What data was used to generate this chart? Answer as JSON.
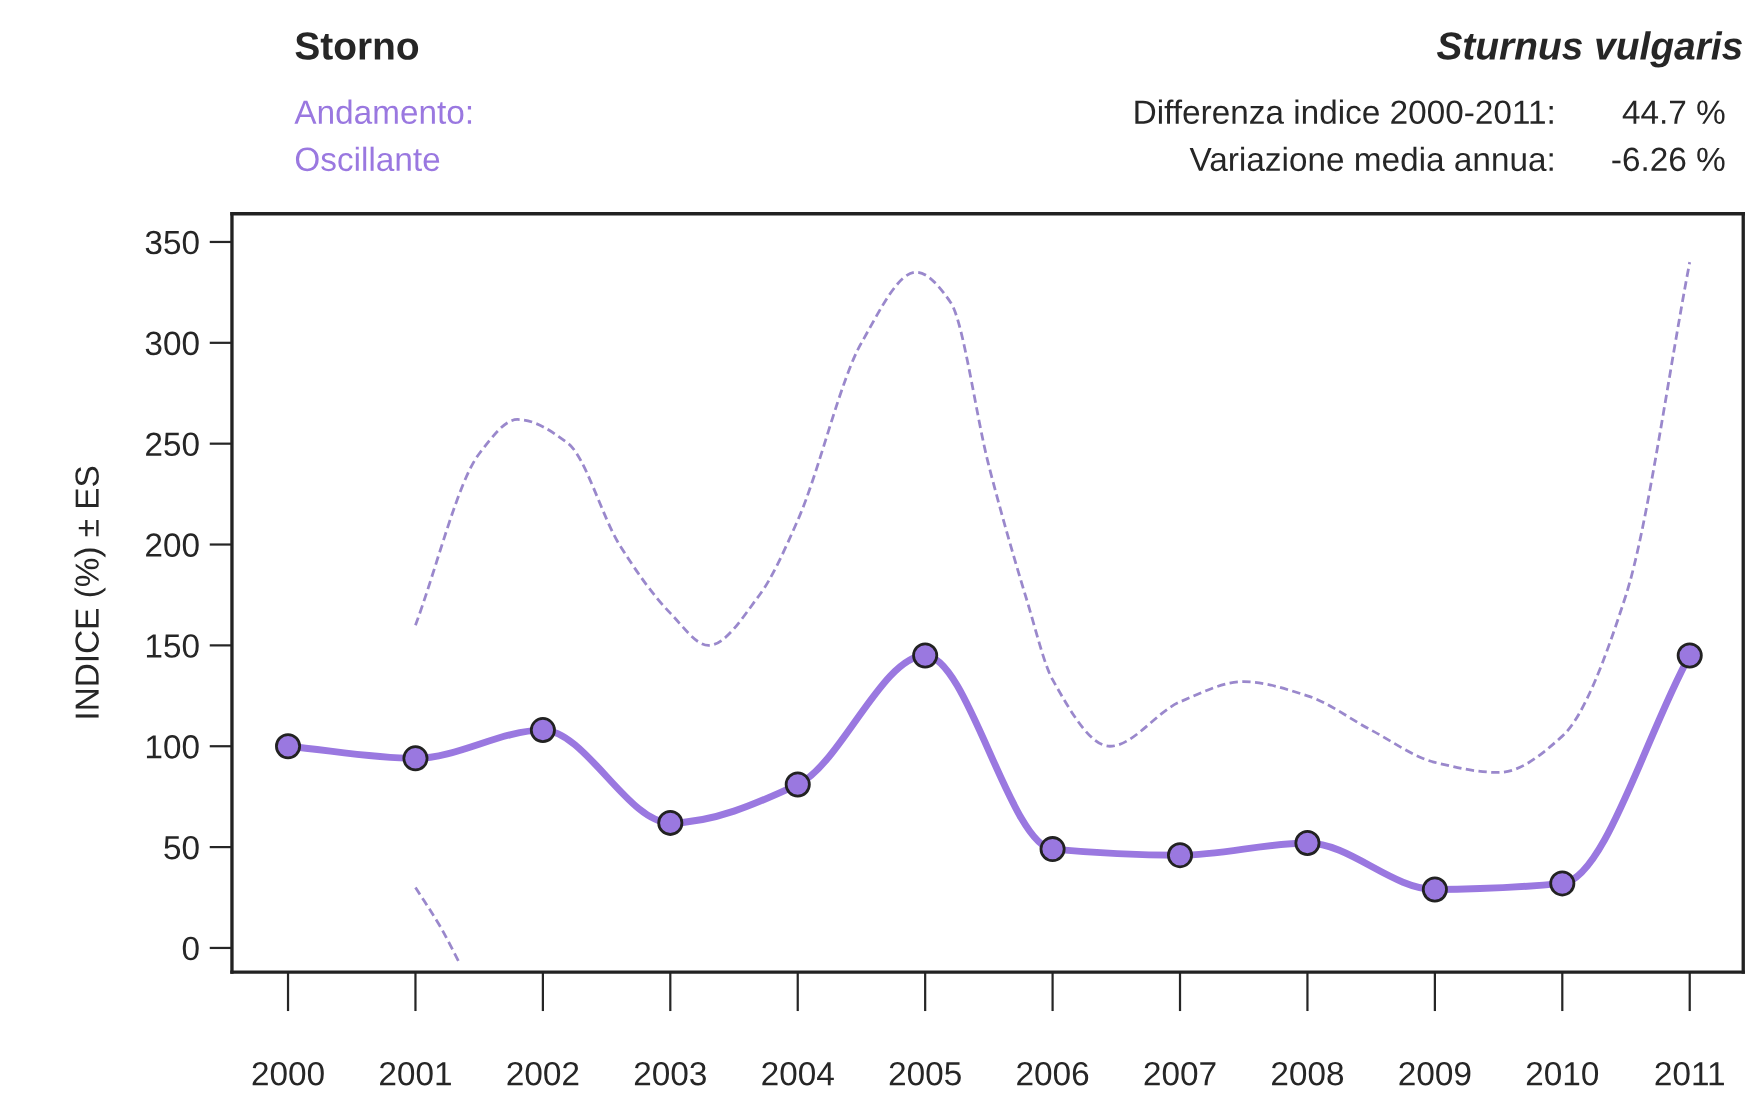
{
  "chart_data": {
    "type": "line",
    "title": "Storno",
    "subtitle": "Sturnus vulgaris",
    "ylabel": "INDICE (%) ± ES",
    "annotations": [
      "Andamento:",
      "Oscillante",
      "Differenza indice 2000-2011:",
      "44.7 %",
      "Variazione media annua:",
      "-6.26 %"
    ],
    "series": [
      {
        "color": "#9a78e0",
        "marker": "circle",
        "line_style": "solid",
        "x": [
          2000,
          2001,
          2002,
          2003,
          2004,
          2005,
          2006,
          2007,
          2008,
          2009,
          2010,
          2011
        ],
        "values": [
          100,
          94,
          108,
          62,
          81,
          145,
          49,
          46,
          52,
          29,
          32,
          145
        ]
      },
      {
        "color": "#9a88cc",
        "marker": "none",
        "line_style": "dashed",
        "x": [
          2001,
          2001.5,
          2001.8,
          2002.2,
          2002.6,
          2003,
          2003.3,
          2003.7,
          2004,
          2004.5,
          2004.93,
          2005.2,
          2005.5,
          2005.8,
          2006,
          2006.45,
          2007,
          2007.5,
          2008,
          2008.5,
          2009,
          2009.5,
          2010,
          2010.5,
          2011
        ],
        "values": [
          160,
          245,
          262,
          250,
          200,
          166,
          150,
          175,
          212,
          300,
          335,
          320,
          239,
          172,
          133,
          100,
          122,
          132,
          125,
          108,
          92,
          87,
          105,
          175,
          340
        ]
      },
      {
        "color": "#9a88cc",
        "marker": "none",
        "line_style": "dashed",
        "x": [
          2001,
          2001.2,
          2001.35
        ],
        "values": [
          30,
          10,
          -8
        ]
      }
    ],
    "xlim": [
      1999.56,
      2011.42
    ],
    "xticks": [
      2000,
      2001,
      2002,
      2003,
      2004,
      2005,
      2006,
      2007,
      2008,
      2009,
      2010,
      2011
    ],
    "ylim": [
      -12,
      364
    ],
    "yticks": [
      0,
      50,
      100,
      150,
      200,
      250,
      300,
      350
    ],
    "grid": false
  }
}
